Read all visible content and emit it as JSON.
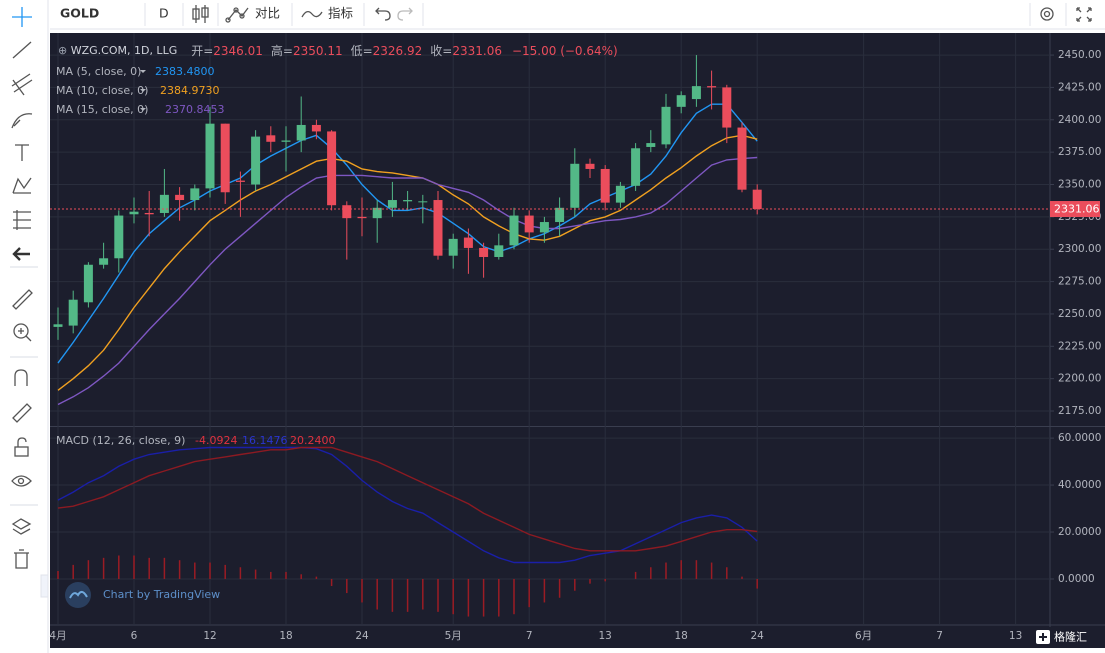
{
  "toolbar": {
    "symbol": "GOLD",
    "interval": "D",
    "compare": "对比",
    "indicators": "指标"
  },
  "legend": {
    "title": "WZG.COM, 1D, LLG",
    "open_label": "开=",
    "open": "2346.01",
    "high_label": "高=",
    "high": "2350.11",
    "low_label": "低=",
    "low": "2326.92",
    "close_label": "收=",
    "close": "2331.06",
    "change": "−15.00 (−0.64%)"
  },
  "macd_legend": "MACD (12, 26, close, 9)",
  "watermark": "Chart by TradingView",
  "logo": "格隆汇",
  "chart_data": [
    {
      "type": "candlestick",
      "categories": [
        "4月",
        null,
        null,
        null,
        null,
        "6",
        null,
        null,
        null,
        null,
        "12",
        null,
        null,
        null,
        null,
        "18",
        null,
        null,
        null,
        null,
        "24",
        null,
        null,
        null,
        null,
        null,
        "5月",
        null,
        null,
        null,
        null,
        "7",
        null,
        null,
        null,
        null,
        "13",
        null,
        null,
        null,
        null,
        "18",
        null,
        null,
        null,
        null,
        "24",
        null,
        null,
        null,
        null,
        null,
        null,
        "6月",
        null,
        null,
        null,
        null,
        "7",
        null,
        null,
        null,
        null,
        "13"
      ],
      "open": [
        2240,
        2241,
        2259,
        2288,
        2293,
        2327,
        2328,
        2328,
        2342,
        2338,
        2347,
        2397,
        2353,
        2350,
        2388,
        2383,
        2384,
        2396,
        2391,
        2334,
        2325,
        2324,
        2332,
        2337,
        2337,
        2338,
        2295,
        2309,
        2301,
        2294,
        2303,
        2326,
        2313,
        2321,
        2332,
        2366,
        2362,
        2336,
        2349,
        2379,
        2381,
        2410,
        2416,
        2426,
        2425,
        2394,
        2346.01,
        null,
        null,
        null,
        null,
        null,
        null,
        null,
        null,
        null,
        null,
        null,
        null,
        null,
        null,
        null,
        null,
        null
      ],
      "high": [
        2255,
        2268,
        2290,
        2305,
        2330,
        2340,
        2345,
        2362,
        2348,
        2350,
        2410,
        2397,
        2360,
        2392,
        2395,
        2395,
        2418,
        2400,
        2392,
        2337,
        2340,
        2338,
        2352,
        2345,
        2342,
        2345,
        2312,
        2316,
        2305,
        2312,
        2332,
        2330,
        2325,
        2340,
        2378,
        2370,
        2365,
        2352,
        2382,
        2392,
        2420,
        2422,
        2450,
        2438,
        2427,
        2398,
        2350.11,
        null,
        null,
        null,
        null,
        null,
        null,
        null,
        null,
        null,
        null,
        null,
        null,
        null,
        null,
        null,
        null,
        null
      ],
      "low": [
        2230,
        2235,
        2255,
        2285,
        2282,
        2320,
        2310,
        2325,
        2322,
        2330,
        2340,
        2335,
        2325,
        2345,
        2375,
        2360,
        2375,
        2385,
        2330,
        2292,
        2310,
        2305,
        2325,
        2330,
        2320,
        2292,
        2285,
        2281,
        2278,
        2292,
        2300,
        2305,
        2305,
        2310,
        2325,
        2355,
        2330,
        2332,
        2345,
        2375,
        2378,
        2405,
        2410,
        2408,
        2382,
        2344,
        2326.92,
        null,
        null,
        null,
        null,
        null,
        null,
        null,
        null,
        null,
        null,
        null,
        null,
        null,
        null,
        null,
        null,
        null
      ],
      "close": [
        2242,
        2261,
        2288,
        2293,
        2326,
        2329,
        2327,
        2342,
        2338,
        2347,
        2397,
        2344,
        2352,
        2387,
        2383,
        2384,
        2396,
        2391,
        2334,
        2324,
        2324,
        2332,
        2338,
        2338,
        2337,
        2295,
        2308,
        2301,
        2294,
        2303,
        2326,
        2313,
        2321,
        2332,
        2366,
        2362,
        2336,
        2349,
        2378,
        2382,
        2410,
        2419,
        2426,
        2425,
        2394,
        2346,
        2331.06,
        null,
        null,
        null,
        null,
        null,
        null,
        null,
        null,
        null,
        null,
        null,
        null,
        null,
        null,
        null,
        null,
        null
      ],
      "up_color": "#53b987",
      "down_color": "#eb4d5c",
      "last_price_label": "2331.06",
      "series": [
        {
          "name": "MA (5, close, 0)",
          "color": "#2196f3",
          "value_label": "2383.4800",
          "values": [
            2212,
            2228,
            2245,
            2262,
            2280,
            2298,
            2312,
            2322,
            2332,
            2338,
            2345,
            2350,
            2355,
            2365,
            2372,
            2378,
            2384,
            2388,
            2378,
            2365,
            2350,
            2338,
            2330,
            2330,
            2332,
            2328,
            2320,
            2312,
            2302,
            2298,
            2302,
            2308,
            2312,
            2318,
            2325,
            2335,
            2340,
            2345,
            2350,
            2358,
            2372,
            2390,
            2405,
            2412,
            2412,
            2398,
            2383.48,
            null,
            null,
            null,
            null,
            null,
            null,
            null,
            null,
            null,
            null,
            null,
            null,
            null,
            null,
            null,
            null,
            null
          ]
        },
        {
          "name": "MA (10, close, 0)",
          "color": "#f0a020",
          "value_label": "2384.9730",
          "values": [
            2191,
            2200,
            2210,
            2222,
            2238,
            2255,
            2270,
            2285,
            2298,
            2310,
            2322,
            2330,
            2338,
            2345,
            2350,
            2356,
            2362,
            2368,
            2370,
            2368,
            2362,
            2360,
            2359,
            2357,
            2355,
            2350,
            2342,
            2335,
            2325,
            2318,
            2312,
            2308,
            2307,
            2310,
            2316,
            2322,
            2325,
            2330,
            2338,
            2346,
            2355,
            2363,
            2372,
            2380,
            2386,
            2388,
            2384.973,
            null,
            null,
            null,
            null,
            null,
            null,
            null,
            null,
            null,
            null,
            null,
            null,
            null,
            null,
            null,
            null,
            null
          ]
        },
        {
          "name": "MA (15, close, 0)",
          "color": "#7e57c2",
          "value_label": "2370.8453",
          "values": [
            2180,
            2186,
            2193,
            2202,
            2212,
            2225,
            2238,
            2250,
            2262,
            2275,
            2288,
            2300,
            2310,
            2320,
            2330,
            2340,
            2348,
            2355,
            2357,
            2357,
            2357,
            2356,
            2355,
            2355,
            2355,
            2350,
            2347,
            2344,
            2338,
            2330,
            2323,
            2318,
            2316,
            2316,
            2318,
            2320,
            2322,
            2323,
            2325,
            2328,
            2335,
            2345,
            2355,
            2365,
            2369,
            2370,
            2370.8453,
            null,
            null,
            null,
            null,
            null,
            null,
            null,
            null,
            null,
            null,
            null,
            null,
            null,
            null,
            null,
            null,
            null
          ]
        }
      ],
      "ylim": [
        2164.2,
        2465.5
      ],
      "yticks": [
        {
          "value": 2175,
          "label": "2175.00"
        },
        {
          "value": 2200,
          "label": "2200.00"
        },
        {
          "value": 2225,
          "label": "2225.00"
        },
        {
          "value": 2250,
          "label": "2250.00"
        },
        {
          "value": 2275,
          "label": "2275.00"
        },
        {
          "value": 2300,
          "label": "2300.00"
        },
        {
          "value": 2325,
          "label": "2325.00"
        },
        {
          "value": 2350,
          "label": "2350.00"
        },
        {
          "value": 2375,
          "label": "2375.00"
        },
        {
          "value": 2400,
          "label": "2400.00"
        },
        {
          "value": 2425,
          "label": "2425.00"
        },
        {
          "value": 2450,
          "label": "2450.00"
        }
      ],
      "grid": true
    },
    {
      "type": "line",
      "series": [
        {
          "kind": "histogram",
          "color": "#9b1c24",
          "value_label": "-4.0924",
          "values": [
            3.4,
            6,
            8,
            9,
            10,
            10,
            9,
            9,
            8,
            7,
            7,
            6,
            5,
            4,
            3,
            3,
            2,
            1,
            -3,
            -6,
            -10,
            -13,
            -14,
            -14,
            -13,
            -14,
            -15,
            -16,
            -16,
            -16,
            -15,
            -12,
            -10,
            -8,
            -5,
            -2,
            -1,
            0,
            3,
            5,
            7,
            8,
            8,
            7,
            5,
            1,
            -4.0924,
            null,
            null,
            null,
            null,
            null,
            null,
            null,
            null,
            null,
            null,
            null,
            null,
            null,
            null,
            null,
            null,
            null
          ]
        },
        {
          "kind": "line",
          "color": "#1a1fa8",
          "value_label": "16.1476",
          "values": [
            33.6,
            37,
            41,
            44,
            48,
            51,
            53,
            54,
            55,
            55.5,
            56,
            56,
            56,
            56,
            56,
            56,
            56,
            55.5,
            53,
            48,
            42,
            37,
            33,
            30,
            28,
            24,
            20,
            16,
            12,
            9,
            7,
            7,
            7,
            7,
            8,
            10,
            11,
            12,
            15,
            18,
            21,
            24,
            26,
            27.2,
            26,
            22,
            16.1476,
            null,
            null,
            null,
            null,
            null,
            null,
            null,
            null,
            null,
            null,
            null,
            null,
            null,
            null,
            null,
            null,
            null
          ]
        },
        {
          "kind": "line",
          "color": "#8c1a22",
          "value_label": "20.2400",
          "values": [
            30.2,
            31,
            33,
            35,
            38,
            41,
            44,
            46,
            48,
            50,
            51,
            52,
            53,
            54,
            55,
            55,
            56,
            56,
            56,
            54,
            52,
            50,
            47,
            44,
            41,
            38,
            35,
            32,
            28,
            25,
            22,
            19,
            17,
            15,
            13,
            12,
            12,
            12,
            12,
            13,
            14,
            16,
            18,
            20,
            21,
            21,
            20.24,
            null,
            null,
            null,
            null,
            null,
            null,
            null,
            null,
            null,
            null,
            null,
            null,
            null,
            null,
            null,
            null,
            null
          ]
        }
      ],
      "ylim": [
        -19.6,
        64.3
      ],
      "yticks": [
        {
          "value": 0,
          "label": "0.0000"
        },
        {
          "value": 20,
          "label": "20.0000"
        },
        {
          "value": 40,
          "label": "40.0000"
        },
        {
          "value": 60,
          "label": "60.0000"
        }
      ],
      "grid": true
    }
  ]
}
